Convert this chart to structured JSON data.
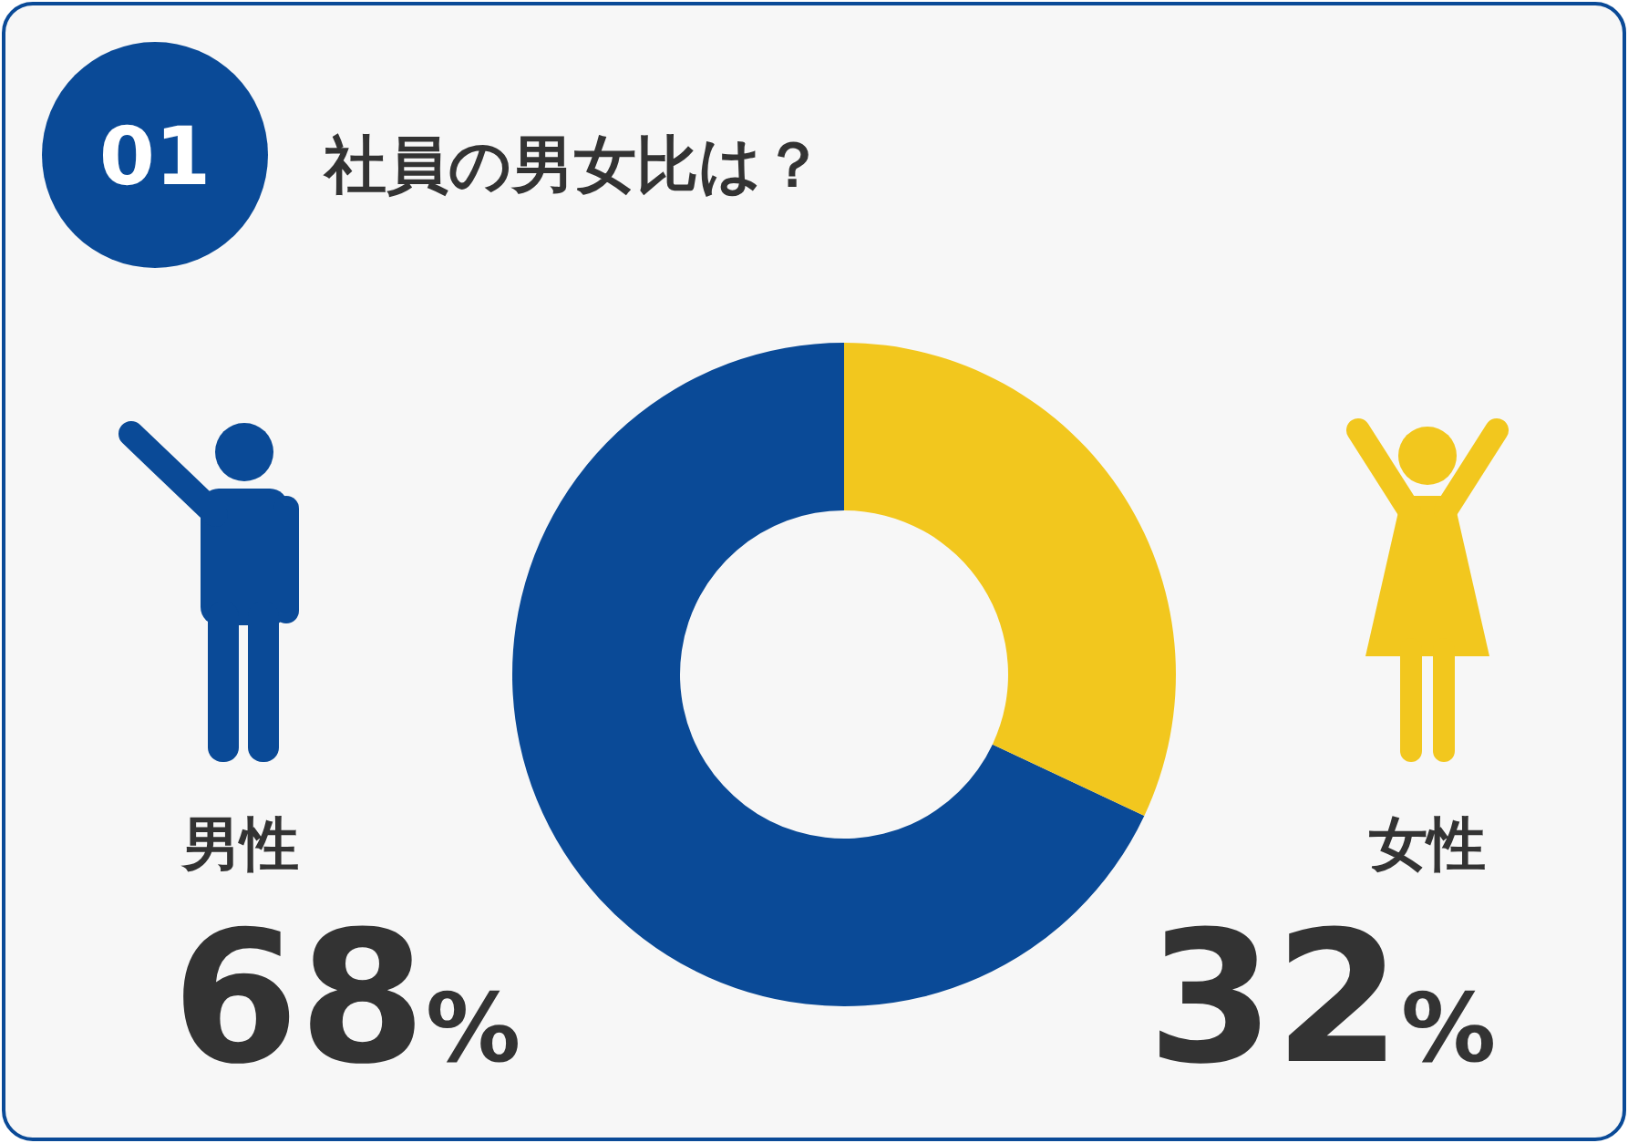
{
  "chart_data": {
    "type": "donut",
    "title": "社員の男女比は？",
    "categories": [
      "男性",
      "女性"
    ],
    "values": [
      68,
      32
    ],
    "colors": [
      "#0a4a97",
      "#f2c71e"
    ],
    "value_labels": [
      "68%",
      "32%"
    ],
    "annotations": [
      "01"
    ]
  }
}
